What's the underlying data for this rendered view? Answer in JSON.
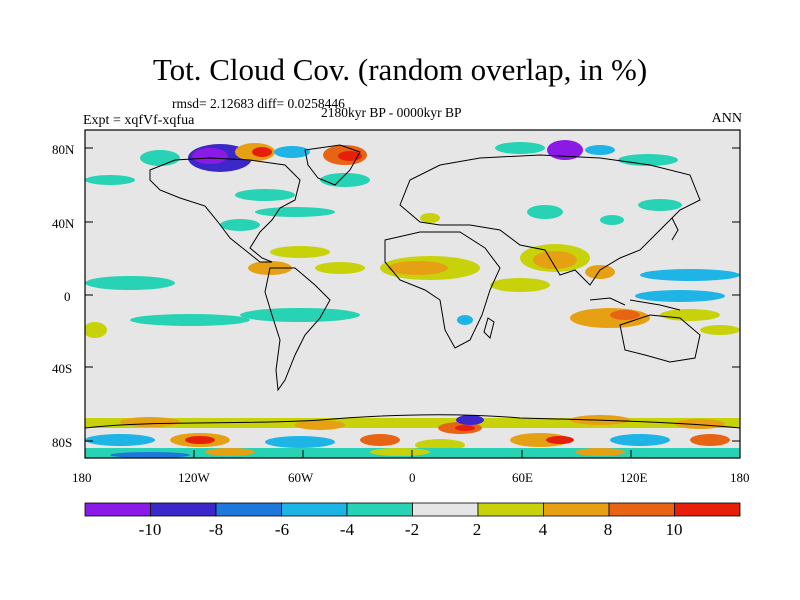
{
  "title": "Tot. Cloud Cov. (random overlap, in %)",
  "stats_line": "rmsd= 2.12683 diff= 0.0258446",
  "experiment_label": "Expt = xqfVf-xqfua",
  "period_label": "2180kyr BP - 0000kyr BP",
  "season_label": "ANN",
  "y_axis_ticks": [
    "80N",
    "40N",
    "0",
    "40S",
    "80S"
  ],
  "x_axis_ticks": [
    "180",
    "120W",
    "60W",
    "0",
    "60E",
    "120E",
    "180"
  ],
  "colorbar": {
    "colors": [
      "#8c1ae6",
      "#3c28c8",
      "#1e78dc",
      "#1eb4e6",
      "#28d2b4",
      "#e6e6e6",
      "#c8d20a",
      "#e6a014",
      "#e66414",
      "#e61e0a"
    ],
    "tick_labels": [
      "-10",
      "-8",
      "-6",
      "-4",
      "-2",
      "2",
      "4",
      "8",
      "10"
    ]
  },
  "map": {
    "background_color": "#e6e6e6",
    "coastline_color": "#000000"
  }
}
